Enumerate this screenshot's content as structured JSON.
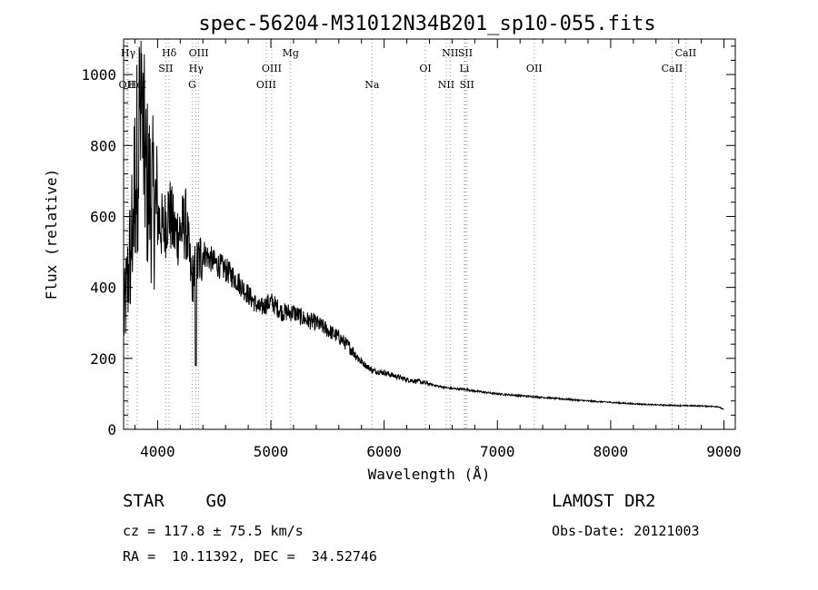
{
  "chart_data": {
    "type": "line",
    "title": "spec-56204-M31012N34B201_sp10-055.fits",
    "xlabel": "Wavelength (Å)",
    "ylabel": "Flux (relative)",
    "xlim": [
      3700,
      9100
    ],
    "ylim": [
      0,
      1100
    ],
    "xticks": [
      4000,
      5000,
      6000,
      7000,
      8000,
      9000
    ],
    "yticks": [
      0,
      200,
      400,
      600,
      800,
      1000
    ],
    "grid": false,
    "series": [
      {
        "x": [
          3700,
          3760,
          3800,
          3850,
          3900,
          3950,
          4000,
          4050,
          4100,
          4150,
          4200,
          4250,
          4300,
          4350,
          4400,
          4500,
          4600,
          4700,
          4800,
          4900,
          5000,
          5100,
          5200,
          5300,
          5400,
          5500,
          5600,
          5700,
          5800,
          5900,
          6000,
          6100,
          6200,
          6300,
          6400,
          6500,
          6600,
          6700,
          6800,
          7000,
          7200,
          7400,
          7600,
          7800,
          8000,
          8200,
          8400,
          8600,
          8800,
          8950,
          9000
        ],
        "y": [
          300,
          500,
          700,
          900,
          700,
          650,
          600,
          560,
          620,
          550,
          560,
          580,
          420,
          460,
          500,
          470,
          450,
          420,
          380,
          340,
          360,
          330,
          330,
          310,
          300,
          280,
          260,
          230,
          190,
          165,
          160,
          150,
          140,
          135,
          128,
          120,
          115,
          113,
          108,
          100,
          95,
          90,
          85,
          80,
          76,
          72,
          69,
          67,
          66,
          64,
          55
        ]
      }
    ],
    "lines": [
      {
        "label": "OII",
        "wavelength": 3727,
        "row": 3
      },
      {
        "label": "Hγ",
        "wavelength": 3740,
        "row": 1
      },
      {
        "label": "HeI",
        "wavelength": 3820,
        "row": 3
      },
      {
        "label": "Hδ",
        "wavelength": 4102,
        "row": 1
      },
      {
        "label": "SII",
        "wavelength": 4072,
        "row": 2
      },
      {
        "label": "OIII",
        "wavelength": 4363,
        "row": 1
      },
      {
        "label": "Hγ",
        "wavelength": 4340,
        "row": 2
      },
      {
        "label": "G",
        "wavelength": 4305,
        "row": 3
      },
      {
        "label": "OIII",
        "wavelength": 5007,
        "row": 2
      },
      {
        "label": "OIII",
        "wavelength": 4959,
        "row": 3
      },
      {
        "label": "Mg",
        "wavelength": 5175,
        "row": 1
      },
      {
        "label": "Na",
        "wavelength": 5893,
        "row": 3
      },
      {
        "label": "OI",
        "wavelength": 6364,
        "row": 2
      },
      {
        "label": "NII",
        "wavelength": 6583,
        "row": 1
      },
      {
        "label": "SII",
        "wavelength": 6717,
        "row": 1
      },
      {
        "label": "Li",
        "wavelength": 6708,
        "row": 2
      },
      {
        "label": "NII",
        "wavelength": 6548,
        "row": 3
      },
      {
        "label": "SII",
        "wavelength": 6731,
        "row": 3
      },
      {
        "label": "OII",
        "wavelength": 7325,
        "row": 2
      },
      {
        "label": "CaII",
        "wavelength": 8662,
        "row": 1
      },
      {
        "label": "CaII",
        "wavelength": 8542,
        "row": 2
      }
    ]
  },
  "info": {
    "object": "STAR    G0",
    "survey": "LAMOST DR2",
    "redshift": "cz = 117.8 ± 75.5 km/s",
    "obs_date": "Obs-Date: 20121003",
    "coords": "RA =  10.11392, DEC =  34.52746"
  }
}
